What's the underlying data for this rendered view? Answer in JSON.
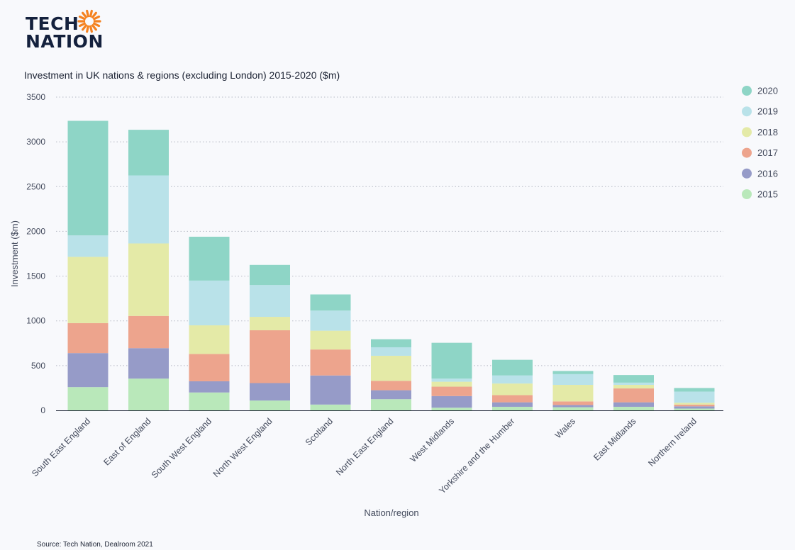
{
  "logo": {
    "line1": "TECH",
    "line2": "NATION",
    "sun_color": "#f58220"
  },
  "source": "Source: Tech Nation, Dealroom 2021",
  "colors": {
    "2015": "#b9e8ba",
    "2016": "#969bc8",
    "2017": "#eda48d",
    "2018": "#e4eaa7",
    "2019": "#b9e2e9",
    "2020": "#8ed5c6"
  },
  "chart_data": {
    "type": "bar",
    "stacked": true,
    "title": "Investment in UK nations & regions (excluding London) 2015-2020 ($m)",
    "xlabel": "Nation/region",
    "ylabel": "Investment ($m)",
    "ylim": [
      0,
      3500
    ],
    "yticks": [
      0,
      500,
      1000,
      1500,
      2000,
      2500,
      3000,
      3500
    ],
    "grid": true,
    "legend_position": "right",
    "categories": [
      "South East England",
      "East of England",
      "South West England",
      "North West England",
      "Scotland",
      "North East England",
      "West Midlands",
      "Yorkshire and the Humber",
      "Wales",
      "East Midlands",
      "Northern Ireland"
    ],
    "series": [
      {
        "name": "2015",
        "values": [
          260,
          355,
          200,
          110,
          65,
          125,
          30,
          40,
          35,
          40,
          20
        ]
      },
      {
        "name": "2016",
        "values": [
          380,
          340,
          125,
          195,
          325,
          100,
          130,
          50,
          25,
          50,
          25
        ]
      },
      {
        "name": "2017",
        "values": [
          335,
          360,
          305,
          590,
          290,
          105,
          105,
          80,
          40,
          155,
          20
        ]
      },
      {
        "name": "2018",
        "values": [
          740,
          810,
          320,
          150,
          210,
          280,
          55,
          130,
          185,
          40,
          20
        ]
      },
      {
        "name": "2019",
        "values": [
          240,
          760,
          500,
          355,
          225,
          95,
          35,
          90,
          120,
          25,
          125
        ]
      },
      {
        "name": "2020",
        "values": [
          1280,
          510,
          490,
          225,
          180,
          90,
          400,
          175,
          35,
          85,
          40
        ]
      }
    ]
  }
}
